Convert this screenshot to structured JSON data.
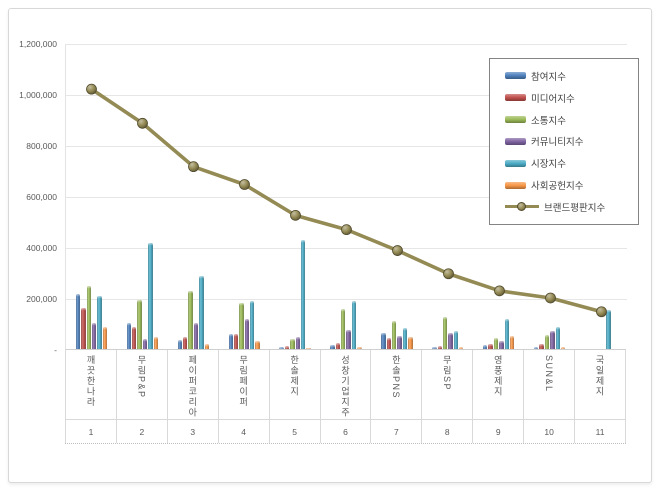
{
  "page": {
    "background": "#ffffff",
    "frame_border_color": "#d8d8d8"
  },
  "chart_data": {
    "type": "bar",
    "subtype": "clustered-bars-with-line-overlay",
    "categories": [
      "깨끗한나라",
      "무림P&P",
      "페이퍼코리아",
      "무림페이퍼",
      "한솔제지",
      "성창기업지주",
      "한솔PNS",
      "무림SP",
      "영풍제지",
      "SUN&L",
      "국일제지"
    ],
    "category_numbers": [
      "1",
      "2",
      "3",
      "4",
      "5",
      "6",
      "7",
      "8",
      "9",
      "10",
      "11"
    ],
    "series": [
      {
        "name": "참여지수",
        "type": "bar",
        "color": "#4F81BD",
        "values": [
          216000,
          102000,
          35000,
          59000,
          8000,
          16000,
          63000,
          8000,
          16000,
          9000,
          0
        ]
      },
      {
        "name": "미디어지수",
        "type": "bar",
        "color": "#C0504D",
        "values": [
          161000,
          87000,
          47000,
          59000,
          12000,
          24000,
          43000,
          12000,
          20000,
          20000,
          0
        ]
      },
      {
        "name": "소통지수",
        "type": "bar",
        "color": "#9BBB59",
        "values": [
          248000,
          193000,
          228000,
          181000,
          39000,
          157000,
          110000,
          126000,
          43000,
          55000,
          0
        ]
      },
      {
        "name": "커뮤니티지수",
        "type": "bar",
        "color": "#8064A2",
        "values": [
          102000,
          39000,
          102000,
          118000,
          47000,
          75000,
          51000,
          63000,
          31000,
          71000,
          0
        ]
      },
      {
        "name": "시장지수",
        "type": "bar",
        "color": "#4BACC6",
        "values": [
          208000,
          417000,
          287000,
          189000,
          428000,
          189000,
          83000,
          71000,
          118000,
          87000,
          153000
        ]
      },
      {
        "name": "사회공헌지수",
        "type": "bar",
        "color": "#F79646",
        "values": [
          87000,
          47000,
          20000,
          31000,
          5000,
          8000,
          47000,
          8000,
          51000,
          8000,
          0
        ]
      },
      {
        "name": "브랜드평판지수",
        "type": "line",
        "color": "#948A54",
        "values": [
          1023000,
          889000,
          719000,
          649000,
          528000,
          472000,
          390000,
          299000,
          232000,
          204000,
          150000
        ]
      }
    ],
    "ylim": [
      0,
      1200000
    ],
    "y_tick_labels": [
      "1,200,000",
      "1,000,000",
      "800,000",
      "600,000",
      "400,000",
      "200,000",
      "-"
    ],
    "grid": true,
    "gridline_color": "#e6e6e6",
    "legend_position": "upper-right-inside"
  }
}
